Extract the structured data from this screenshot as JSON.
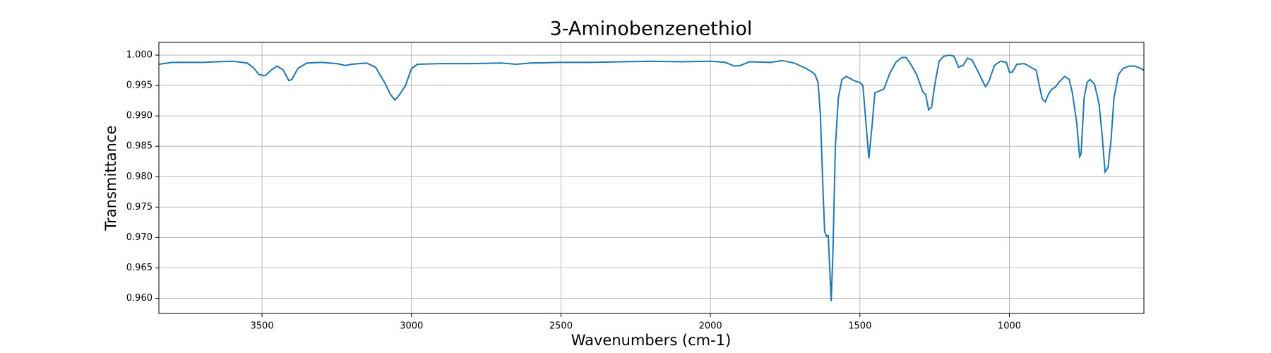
{
  "chart_data": {
    "type": "line",
    "title": "3-Aminobenzenethiol",
    "x_label": "Wavenumbers (cm-1)",
    "y_label": "Transmittance",
    "color": "#1f77b4",
    "grid": true,
    "xlim": [
      3845,
      550
    ],
    "ylim": [
      0.9575,
      1.0021
    ],
    "xticks": [
      3500,
      3000,
      2500,
      2000,
      1500,
      1000
    ],
    "yticks": [
      {
        "value": 0.96,
        "label": "0.960"
      },
      0.965,
      {
        "value": 0.97,
        "label": "0.970"
      },
      0.975,
      {
        "value": 0.98,
        "label": "0.980"
      },
      0.985,
      {
        "value": 0.99,
        "label": "0.990"
      },
      0.995,
      {
        "value": 1.0,
        "label": "1.000"
      }
    ],
    "x": [
      3845,
      3800,
      3700,
      3650,
      3600,
      3550,
      3530,
      3510,
      3490,
      3470,
      3450,
      3430,
      3410,
      3400,
      3380,
      3350,
      3300,
      3250,
      3220,
      3200,
      3150,
      3120,
      3090,
      3070,
      3055,
      3040,
      3020,
      3000,
      2980,
      2900,
      2800,
      2700,
      2650,
      2600,
      2500,
      2400,
      2300,
      2200,
      2100,
      2000,
      1950,
      1920,
      1900,
      1870,
      1800,
      1760,
      1720,
      1680,
      1660,
      1650,
      1640,
      1632,
      1625,
      1618,
      1612,
      1606,
      1600,
      1596,
      1590,
      1582,
      1572,
      1560,
      1545,
      1520,
      1500,
      1490,
      1480,
      1470,
      1460,
      1450,
      1440,
      1420,
      1400,
      1380,
      1360,
      1345,
      1330,
      1310,
      1290,
      1280,
      1270,
      1260,
      1250,
      1235,
      1220,
      1200,
      1185,
      1170,
      1155,
      1140,
      1125,
      1110,
      1090,
      1080,
      1070,
      1050,
      1030,
      1010,
      1000,
      990,
      975,
      950,
      935,
      910,
      900,
      890,
      880,
      870,
      860,
      845,
      835,
      815,
      800,
      790,
      775,
      765,
      760,
      750,
      740,
      730,
      715,
      700,
      690,
      680,
      670,
      660,
      650,
      635,
      620,
      600,
      580,
      560,
      550
    ],
    "values": [
      0.9985,
      0.9988,
      0.9988,
      0.9989,
      0.999,
      0.9987,
      0.998,
      0.9968,
      0.9966,
      0.9975,
      0.9982,
      0.9976,
      0.9958,
      0.996,
      0.9978,
      0.9987,
      0.9988,
      0.9986,
      0.9983,
      0.9985,
      0.9987,
      0.998,
      0.9955,
      0.9935,
      0.9926,
      0.9935,
      0.995,
      0.9978,
      0.9985,
      0.9986,
      0.9986,
      0.9987,
      0.9985,
      0.9987,
      0.9988,
      0.9988,
      0.9989,
      0.999,
      0.9989,
      0.999,
      0.9988,
      0.9982,
      0.9983,
      0.9989,
      0.9988,
      0.9991,
      0.9987,
      0.9978,
      0.9972,
      0.9968,
      0.9955,
      0.99,
      0.98,
      0.971,
      0.9702,
      0.9703,
      0.964,
      0.9595,
      0.968,
      0.985,
      0.993,
      0.996,
      0.9965,
      0.9958,
      0.9955,
      0.995,
      0.989,
      0.983,
      0.988,
      0.9938,
      0.994,
      0.9944,
      0.997,
      0.9988,
      0.9996,
      0.9996,
      0.9985,
      0.9968,
      0.994,
      0.9935,
      0.991,
      0.9915,
      0.995,
      0.999,
      0.9998,
      1.0,
      0.9998,
      0.998,
      0.9983,
      0.9995,
      0.9992,
      0.9978,
      0.9958,
      0.9948,
      0.9955,
      0.9983,
      0.999,
      0.9988,
      0.9972,
      0.9972,
      0.9985,
      0.9986,
      0.9982,
      0.9975,
      0.995,
      0.9928,
      0.9923,
      0.9935,
      0.9943,
      0.9948,
      0.9955,
      0.9965,
      0.996,
      0.994,
      0.989,
      0.9833,
      0.9838,
      0.993,
      0.9955,
      0.996,
      0.9952,
      0.992,
      0.987,
      0.9808,
      0.9815,
      0.986,
      0.993,
      0.9968,
      0.9978,
      0.9982,
      0.9982,
      0.9978,
      0.9975
    ]
  }
}
